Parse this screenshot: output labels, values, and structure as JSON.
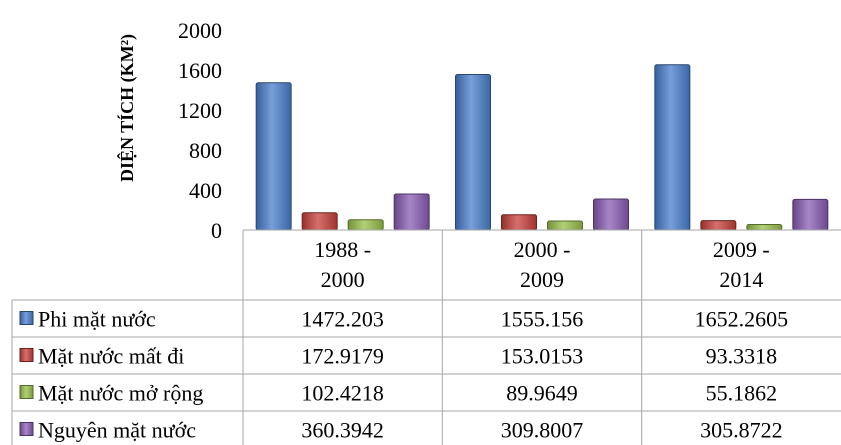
{
  "chart_data": {
    "type": "bar",
    "title": "",
    "xlabel": "",
    "ylabel": "DIỆN TÍCH (KM²)",
    "ylim": [
      0,
      2000
    ],
    "yticks": [
      "0",
      "400",
      "800",
      "1200",
      "1600",
      "2000"
    ],
    "categories": [
      [
        "1988 -",
        "2000"
      ],
      [
        "2000 -",
        "2009"
      ],
      [
        "2009 -",
        "2014"
      ]
    ],
    "series": [
      {
        "name": "Phi mặt nước",
        "color": "#4a7fce",
        "values": [
          1472.203,
          1555.156,
          1652.2605
        ],
        "labels": [
          "1472.203",
          "1555.156",
          "1652.2605"
        ]
      },
      {
        "name": "Mặt nước mất đi",
        "color": "#c8403b",
        "values": [
          172.9179,
          153.0153,
          93.3318
        ],
        "labels": [
          "172.9179",
          "153.0153",
          "93.3318"
        ]
      },
      {
        "name": "Mặt nước mở rộng",
        "color": "#9bc04a",
        "values": [
          102.4218,
          89.9649,
          55.1862
        ],
        "labels": [
          "102.4218",
          "89.9649",
          "55.1862"
        ]
      },
      {
        "name": "Nguyên mặt nước",
        "color": "#8a5db5",
        "values": [
          360.3942,
          309.8007,
          305.8722
        ],
        "labels": [
          "360.3942",
          "309.8007",
          "305.8722"
        ]
      }
    ],
    "grid": false,
    "legend": "data-table"
  }
}
